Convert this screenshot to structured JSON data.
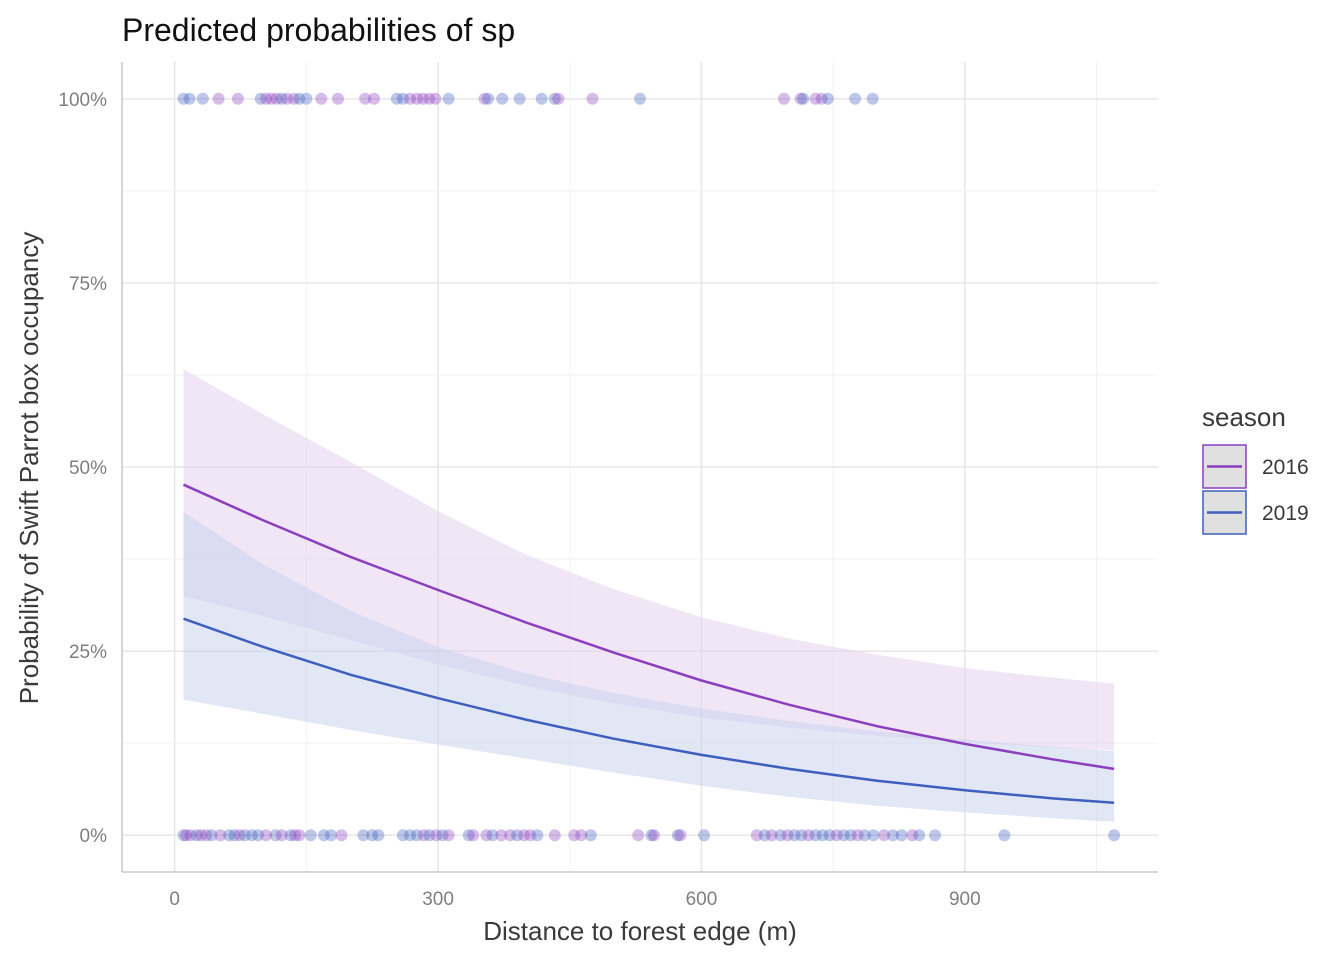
{
  "chart_data": {
    "type": "line",
    "title": "Predicted probabilities of sp",
    "xlabel": "Distance to forest edge (m)",
    "ylabel": "Probability of Swift Parrot box occupancy",
    "xlim": [
      -60,
      1120
    ],
    "ylim": [
      -0.05,
      1.05
    ],
    "x_ticks": [
      0,
      300,
      600,
      900
    ],
    "x_tick_labels": [
      "0",
      "300",
      "600",
      "900"
    ],
    "y_ticks": [
      0,
      0.25,
      0.5,
      0.75,
      1
    ],
    "y_tick_labels": [
      "0%",
      "25%",
      "50%",
      "75%",
      "100%"
    ],
    "grid": true,
    "legend": {
      "title": "season",
      "position": "right"
    },
    "series": [
      {
        "name": "2016",
        "color": "#8b3fbf",
        "band_color": "#e3cdee",
        "x": [
          10,
          100,
          200,
          300,
          400,
          500,
          600,
          700,
          800,
          900,
          1000,
          1070
        ],
        "y": [
          0.476,
          0.428,
          0.378,
          0.333,
          0.289,
          0.248,
          0.21,
          0.177,
          0.148,
          0.124,
          0.103,
          0.09
        ],
        "lower": [
          0.325,
          0.298,
          0.265,
          0.232,
          0.203,
          0.179,
          0.16,
          0.146,
          0.135,
          0.126,
          0.119,
          0.115
        ],
        "upper": [
          0.633,
          0.572,
          0.507,
          0.44,
          0.381,
          0.334,
          0.296,
          0.267,
          0.245,
          0.227,
          0.214,
          0.206
        ]
      },
      {
        "name": "2019",
        "color": "#3f5fbf",
        "band_color": "#c5d0ec",
        "x": [
          10,
          100,
          200,
          300,
          400,
          500,
          600,
          700,
          800,
          900,
          1000,
          1070
        ],
        "y": [
          0.294,
          0.256,
          0.218,
          0.186,
          0.157,
          0.131,
          0.109,
          0.09,
          0.074,
          0.061,
          0.05,
          0.044
        ],
        "lower": [
          0.184,
          0.165,
          0.143,
          0.123,
          0.104,
          0.085,
          0.067,
          0.052,
          0.04,
          0.031,
          0.023,
          0.018
        ],
        "upper": [
          0.439,
          0.368,
          0.305,
          0.255,
          0.22,
          0.193,
          0.172,
          0.155,
          0.141,
          0.13,
          0.12,
          0.114
        ]
      }
    ],
    "points": [
      {
        "x": 10,
        "y": 1,
        "s": "2019"
      },
      {
        "x": 17,
        "y": 1,
        "s": "2019"
      },
      {
        "x": 32,
        "y": 1,
        "s": "2019"
      },
      {
        "x": 50,
        "y": 1,
        "s": "2016"
      },
      {
        "x": 72,
        "y": 1,
        "s": "2016"
      },
      {
        "x": 98,
        "y": 1,
        "s": "2019"
      },
      {
        "x": 104,
        "y": 1,
        "s": "2016"
      },
      {
        "x": 110,
        "y": 1,
        "s": "2016"
      },
      {
        "x": 116,
        "y": 1,
        "s": "2016"
      },
      {
        "x": 122,
        "y": 1,
        "s": "2019"
      },
      {
        "x": 128,
        "y": 1,
        "s": "2016"
      },
      {
        "x": 136,
        "y": 1,
        "s": "2016"
      },
      {
        "x": 142,
        "y": 1,
        "s": "2019"
      },
      {
        "x": 150,
        "y": 1,
        "s": "2019"
      },
      {
        "x": 167,
        "y": 1,
        "s": "2016"
      },
      {
        "x": 186,
        "y": 1,
        "s": "2016"
      },
      {
        "x": 217,
        "y": 1,
        "s": "2016"
      },
      {
        "x": 227,
        "y": 1,
        "s": "2016"
      },
      {
        "x": 253,
        "y": 1,
        "s": "2019"
      },
      {
        "x": 260,
        "y": 1,
        "s": "2019"
      },
      {
        "x": 268,
        "y": 1,
        "s": "2016"
      },
      {
        "x": 276,
        "y": 1,
        "s": "2016"
      },
      {
        "x": 283,
        "y": 1,
        "s": "2016"
      },
      {
        "x": 290,
        "y": 1,
        "s": "2016"
      },
      {
        "x": 297,
        "y": 1,
        "s": "2016"
      },
      {
        "x": 312,
        "y": 1,
        "s": "2019"
      },
      {
        "x": 353,
        "y": 1,
        "s": "2016"
      },
      {
        "x": 357,
        "y": 1,
        "s": "2019"
      },
      {
        "x": 373,
        "y": 1,
        "s": "2019"
      },
      {
        "x": 393,
        "y": 1,
        "s": "2019"
      },
      {
        "x": 418,
        "y": 1,
        "s": "2019"
      },
      {
        "x": 433,
        "y": 1,
        "s": "2019"
      },
      {
        "x": 437,
        "y": 1,
        "s": "2016"
      },
      {
        "x": 476,
        "y": 1,
        "s": "2016"
      },
      {
        "x": 530,
        "y": 1,
        "s": "2019"
      },
      {
        "x": 694,
        "y": 1,
        "s": "2016"
      },
      {
        "x": 713,
        "y": 1,
        "s": "2016"
      },
      {
        "x": 716,
        "y": 1,
        "s": "2019"
      },
      {
        "x": 730,
        "y": 1,
        "s": "2016"
      },
      {
        "x": 737,
        "y": 1,
        "s": "2016"
      },
      {
        "x": 744,
        "y": 1,
        "s": "2019"
      },
      {
        "x": 775,
        "y": 1,
        "s": "2019"
      },
      {
        "x": 795,
        "y": 1,
        "s": "2019"
      },
      {
        "x": 10,
        "y": 0,
        "s": "2019"
      },
      {
        "x": 13,
        "y": 0,
        "s": "2016"
      },
      {
        "x": 18,
        "y": 0,
        "s": "2016"
      },
      {
        "x": 25,
        "y": 0,
        "s": "2019"
      },
      {
        "x": 30,
        "y": 0,
        "s": "2016"
      },
      {
        "x": 36,
        "y": 0,
        "s": "2016"
      },
      {
        "x": 42,
        "y": 0,
        "s": "2019"
      },
      {
        "x": 52,
        "y": 0,
        "s": "2016"
      },
      {
        "x": 62,
        "y": 0,
        "s": "2019"
      },
      {
        "x": 68,
        "y": 0,
        "s": "2019"
      },
      {
        "x": 74,
        "y": 0,
        "s": "2016"
      },
      {
        "x": 80,
        "y": 0,
        "s": "2019"
      },
      {
        "x": 88,
        "y": 0,
        "s": "2019"
      },
      {
        "x": 95,
        "y": 0,
        "s": "2019"
      },
      {
        "x": 104,
        "y": 0,
        "s": "2016"
      },
      {
        "x": 115,
        "y": 0,
        "s": "2019"
      },
      {
        "x": 122,
        "y": 0,
        "s": "2016"
      },
      {
        "x": 132,
        "y": 0,
        "s": "2019"
      },
      {
        "x": 137,
        "y": 0,
        "s": "2016"
      },
      {
        "x": 142,
        "y": 0,
        "s": "2016"
      },
      {
        "x": 155,
        "y": 0,
        "s": "2019"
      },
      {
        "x": 170,
        "y": 0,
        "s": "2019"
      },
      {
        "x": 178,
        "y": 0,
        "s": "2019"
      },
      {
        "x": 190,
        "y": 0,
        "s": "2016"
      },
      {
        "x": 215,
        "y": 0,
        "s": "2019"
      },
      {
        "x": 225,
        "y": 0,
        "s": "2019"
      },
      {
        "x": 232,
        "y": 0,
        "s": "2019"
      },
      {
        "x": 260,
        "y": 0,
        "s": "2019"
      },
      {
        "x": 268,
        "y": 0,
        "s": "2019"
      },
      {
        "x": 276,
        "y": 0,
        "s": "2019"
      },
      {
        "x": 284,
        "y": 0,
        "s": "2016"
      },
      {
        "x": 290,
        "y": 0,
        "s": "2019"
      },
      {
        "x": 298,
        "y": 0,
        "s": "2016"
      },
      {
        "x": 305,
        "y": 0,
        "s": "2019"
      },
      {
        "x": 312,
        "y": 0,
        "s": "2016"
      },
      {
        "x": 335,
        "y": 0,
        "s": "2019"
      },
      {
        "x": 340,
        "y": 0,
        "s": "2016"
      },
      {
        "x": 355,
        "y": 0,
        "s": "2016"
      },
      {
        "x": 362,
        "y": 0,
        "s": "2019"
      },
      {
        "x": 372,
        "y": 0,
        "s": "2016"
      },
      {
        "x": 382,
        "y": 0,
        "s": "2016"
      },
      {
        "x": 390,
        "y": 0,
        "s": "2019"
      },
      {
        "x": 398,
        "y": 0,
        "s": "2016"
      },
      {
        "x": 405,
        "y": 0,
        "s": "2016"
      },
      {
        "x": 413,
        "y": 0,
        "s": "2019"
      },
      {
        "x": 433,
        "y": 0,
        "s": "2016"
      },
      {
        "x": 455,
        "y": 0,
        "s": "2016"
      },
      {
        "x": 463,
        "y": 0,
        "s": "2016"
      },
      {
        "x": 474,
        "y": 0,
        "s": "2019"
      },
      {
        "x": 528,
        "y": 0,
        "s": "2016"
      },
      {
        "x": 543,
        "y": 0,
        "s": "2019"
      },
      {
        "x": 546,
        "y": 0,
        "s": "2016"
      },
      {
        "x": 573,
        "y": 0,
        "s": "2019"
      },
      {
        "x": 576,
        "y": 0,
        "s": "2016"
      },
      {
        "x": 603,
        "y": 0,
        "s": "2019"
      },
      {
        "x": 663,
        "y": 0,
        "s": "2016"
      },
      {
        "x": 672,
        "y": 0,
        "s": "2019"
      },
      {
        "x": 680,
        "y": 0,
        "s": "2016"
      },
      {
        "x": 690,
        "y": 0,
        "s": "2019"
      },
      {
        "x": 698,
        "y": 0,
        "s": "2016"
      },
      {
        "x": 706,
        "y": 0,
        "s": "2019"
      },
      {
        "x": 714,
        "y": 0,
        "s": "2019"
      },
      {
        "x": 722,
        "y": 0,
        "s": "2016"
      },
      {
        "x": 730,
        "y": 0,
        "s": "2019"
      },
      {
        "x": 738,
        "y": 0,
        "s": "2019"
      },
      {
        "x": 746,
        "y": 0,
        "s": "2019"
      },
      {
        "x": 754,
        "y": 0,
        "s": "2016"
      },
      {
        "x": 762,
        "y": 0,
        "s": "2019"
      },
      {
        "x": 770,
        "y": 0,
        "s": "2019"
      },
      {
        "x": 778,
        "y": 0,
        "s": "2016"
      },
      {
        "x": 786,
        "y": 0,
        "s": "2019"
      },
      {
        "x": 796,
        "y": 0,
        "s": "2019"
      },
      {
        "x": 808,
        "y": 0,
        "s": "2016"
      },
      {
        "x": 818,
        "y": 0,
        "s": "2019"
      },
      {
        "x": 828,
        "y": 0,
        "s": "2019"
      },
      {
        "x": 840,
        "y": 0,
        "s": "2016"
      },
      {
        "x": 848,
        "y": 0,
        "s": "2019"
      },
      {
        "x": 866,
        "y": 0,
        "s": "2019"
      },
      {
        "x": 945,
        "y": 0,
        "s": "2019"
      },
      {
        "x": 1070,
        "y": 0,
        "s": "2019"
      }
    ]
  }
}
